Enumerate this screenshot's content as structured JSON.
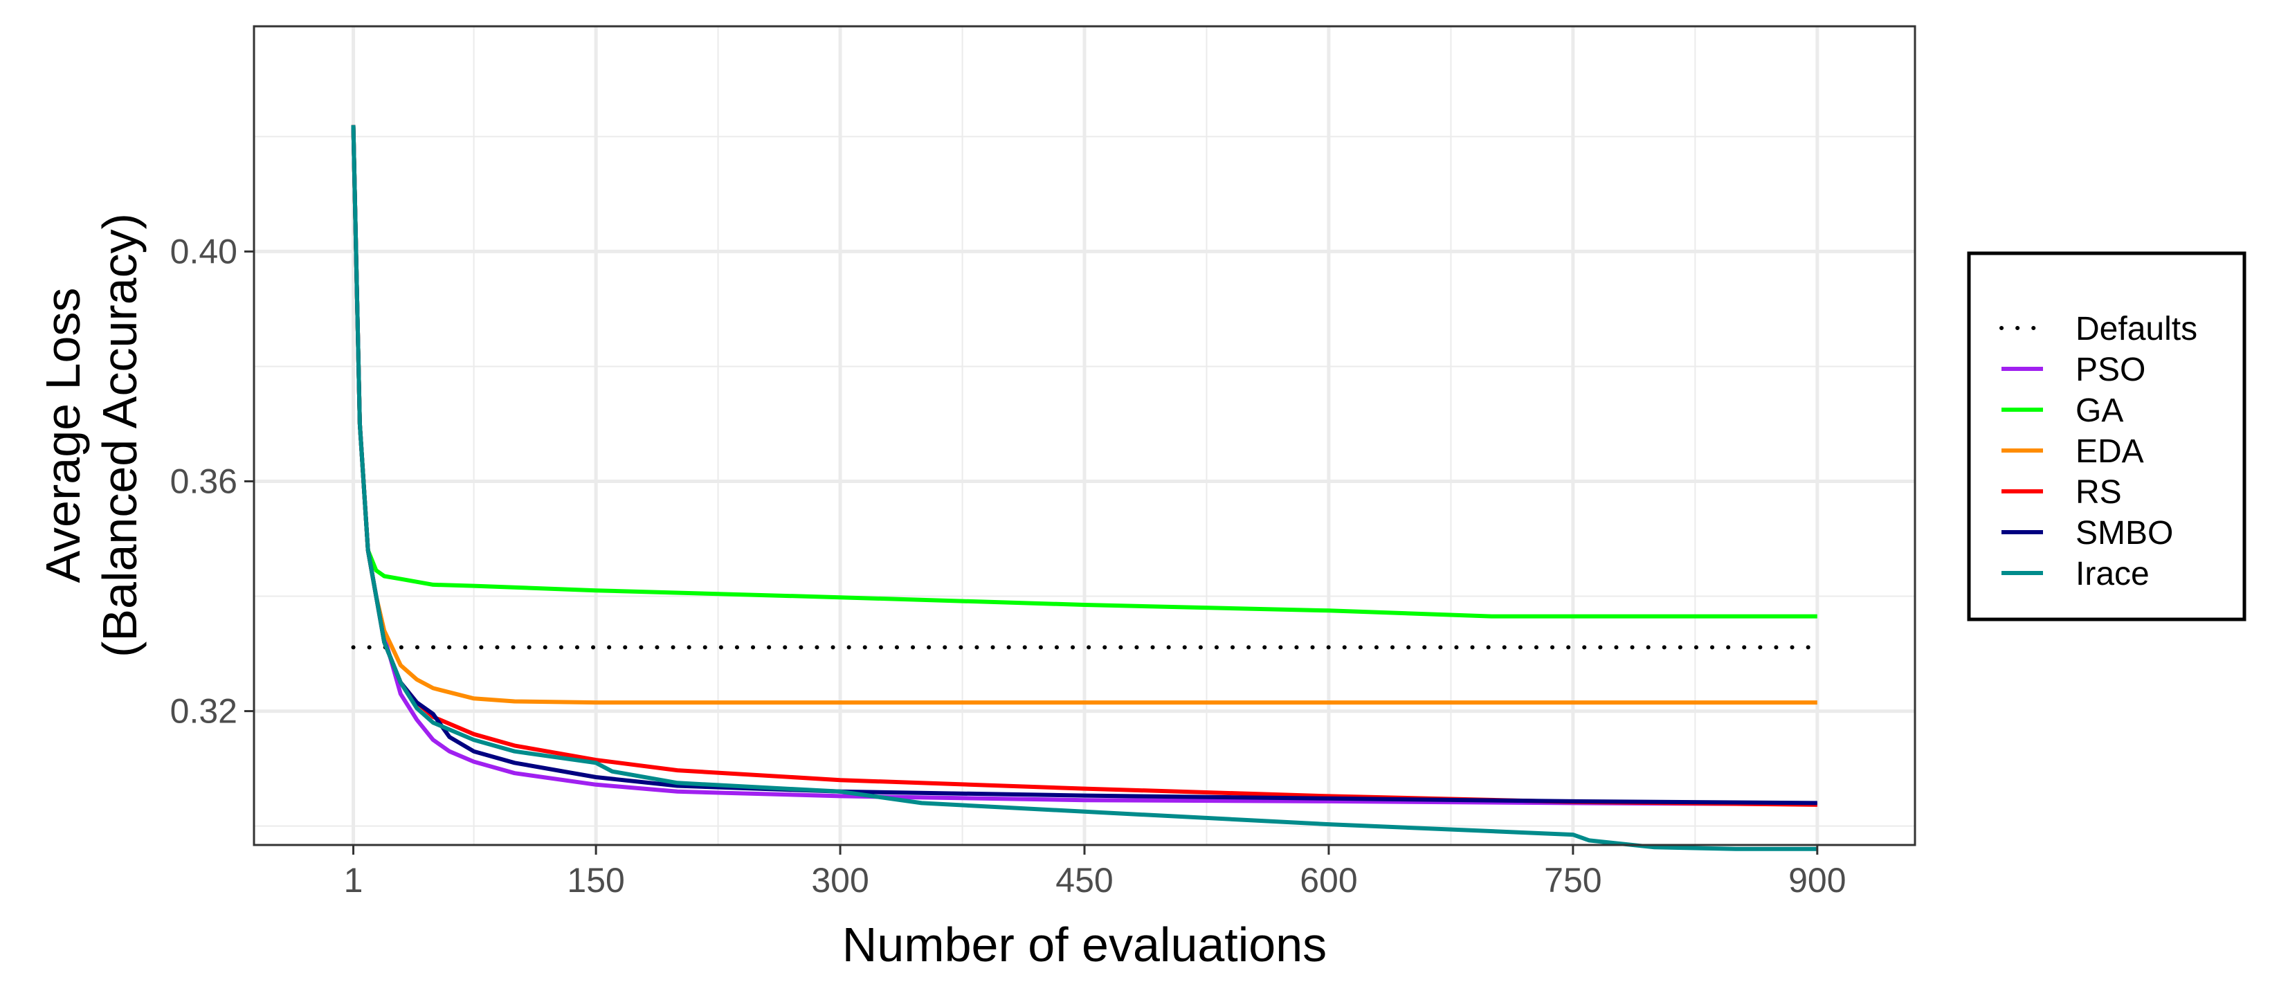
{
  "chart_data": {
    "type": "line",
    "title": "",
    "xlabel": "Number of evaluations",
    "ylabel_lines": [
      "Average Loss",
      "(Balanced Accuracy)"
    ],
    "xlim": [
      -60,
      960
    ],
    "ylim": [
      0.2967,
      0.4392
    ],
    "x_major_ticks": [
      1,
      150,
      300,
      450,
      600,
      750,
      900
    ],
    "x_minor_ticks": [
      75,
      225,
      375,
      525,
      675,
      825
    ],
    "y_major_ticks": [
      0.32,
      0.36,
      0.4
    ],
    "y_tick_labels": [
      "0.32",
      "0.36",
      "0.40"
    ],
    "y_minor_ticks": [
      0.3,
      0.34,
      0.38,
      0.42
    ],
    "grid": true,
    "legend_position": "right",
    "series": [
      {
        "name": "Defaults",
        "color": "#000000",
        "dashed": true,
        "points": [
          [
            1,
            0.3311
          ],
          [
            900,
            0.3311
          ]
        ]
      },
      {
        "name": "PSO",
        "color": "#a020f0",
        "points": [
          [
            1,
            0.422
          ],
          [
            5,
            0.37
          ],
          [
            10,
            0.348
          ],
          [
            15,
            0.34
          ],
          [
            20,
            0.333
          ],
          [
            30,
            0.323
          ],
          [
            40,
            0.3185
          ],
          [
            50,
            0.315
          ],
          [
            60,
            0.313
          ],
          [
            75,
            0.3112
          ],
          [
            100,
            0.3092
          ],
          [
            150,
            0.3072
          ],
          [
            200,
            0.306
          ],
          [
            300,
            0.3052
          ],
          [
            450,
            0.3045
          ],
          [
            600,
            0.3043
          ],
          [
            750,
            0.304
          ],
          [
            900,
            0.3038
          ]
        ]
      },
      {
        "name": "GA",
        "color": "#00ff00",
        "points": [
          [
            1,
            0.422
          ],
          [
            5,
            0.37
          ],
          [
            10,
            0.348
          ],
          [
            15,
            0.3445
          ],
          [
            20,
            0.3435
          ],
          [
            30,
            0.343
          ],
          [
            50,
            0.342
          ],
          [
            75,
            0.3418
          ],
          [
            150,
            0.341
          ],
          [
            300,
            0.3398
          ],
          [
            450,
            0.3385
          ],
          [
            600,
            0.3375
          ],
          [
            700,
            0.3365
          ],
          [
            900,
            0.3365
          ]
        ]
      },
      {
        "name": "EDA",
        "color": "#ff8c00",
        "points": [
          [
            1,
            0.422
          ],
          [
            5,
            0.37
          ],
          [
            10,
            0.348
          ],
          [
            15,
            0.34
          ],
          [
            20,
            0.334
          ],
          [
            30,
            0.328
          ],
          [
            40,
            0.3255
          ],
          [
            50,
            0.324
          ],
          [
            75,
            0.3222
          ],
          [
            100,
            0.3217
          ],
          [
            150,
            0.3215
          ],
          [
            300,
            0.3215
          ],
          [
            600,
            0.3215
          ],
          [
            900,
            0.3215
          ]
        ]
      },
      {
        "name": "RS",
        "color": "#ff0000",
        "points": [
          [
            1,
            0.422
          ],
          [
            5,
            0.37
          ],
          [
            10,
            0.348
          ],
          [
            15,
            0.34
          ],
          [
            20,
            0.332
          ],
          [
            30,
            0.325
          ],
          [
            40,
            0.3215
          ],
          [
            50,
            0.319
          ],
          [
            75,
            0.316
          ],
          [
            100,
            0.314
          ],
          [
            150,
            0.3115
          ],
          [
            200,
            0.3097
          ],
          [
            300,
            0.308
          ],
          [
            450,
            0.3065
          ],
          [
            600,
            0.3052
          ],
          [
            750,
            0.3042
          ],
          [
            900,
            0.3037
          ]
        ]
      },
      {
        "name": "SMBO",
        "color": "#000080",
        "points": [
          [
            1,
            0.422
          ],
          [
            5,
            0.37
          ],
          [
            10,
            0.348
          ],
          [
            15,
            0.34
          ],
          [
            20,
            0.332
          ],
          [
            30,
            0.325
          ],
          [
            40,
            0.3215
          ],
          [
            50,
            0.3195
          ],
          [
            60,
            0.3155
          ],
          [
            75,
            0.313
          ],
          [
            100,
            0.311
          ],
          [
            150,
            0.3085
          ],
          [
            200,
            0.307
          ],
          [
            300,
            0.306
          ],
          [
            450,
            0.3053
          ],
          [
            600,
            0.3048
          ],
          [
            750,
            0.3043
          ],
          [
            900,
            0.304
          ]
        ]
      },
      {
        "name": "Irace",
        "color": "#008b8b",
        "points": [
          [
            1,
            0.422
          ],
          [
            5,
            0.37
          ],
          [
            10,
            0.348
          ],
          [
            15,
            0.34
          ],
          [
            20,
            0.332
          ],
          [
            30,
            0.325
          ],
          [
            40,
            0.3205
          ],
          [
            50,
            0.318
          ],
          [
            75,
            0.315
          ],
          [
            100,
            0.313
          ],
          [
            150,
            0.311
          ],
          [
            160,
            0.3095
          ],
          [
            200,
            0.3075
          ],
          [
            300,
            0.306
          ],
          [
            350,
            0.304
          ],
          [
            450,
            0.3025
          ],
          [
            600,
            0.3003
          ],
          [
            750,
            0.2985
          ],
          [
            760,
            0.2975
          ],
          [
            800,
            0.2963
          ],
          [
            850,
            0.296
          ],
          [
            900,
            0.296
          ]
        ]
      }
    ]
  }
}
